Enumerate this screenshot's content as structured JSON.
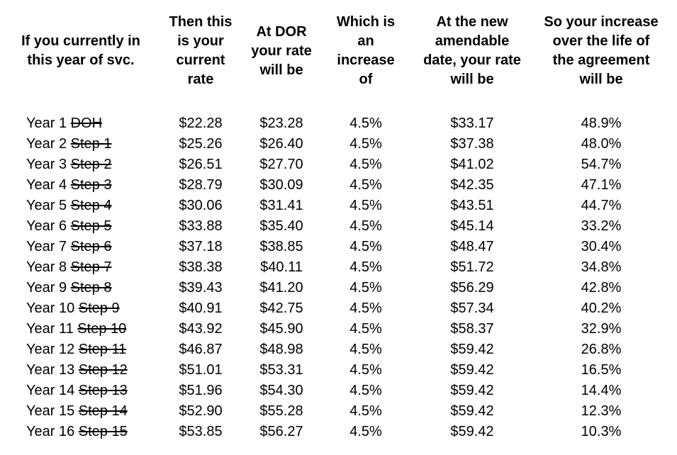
{
  "colors": {
    "background": "#ffffff",
    "text": "#000000"
  },
  "table": {
    "columns": [
      {
        "label": "If you currently in\nthis year of svc."
      },
      {
        "label": "Then this\nis your\ncurrent\nrate"
      },
      {
        "label": "At DOR\nyour rate\nwill be"
      },
      {
        "label": "Which is\nan\nincrease\nof"
      },
      {
        "label": "At the new\namendable\ndate, your rate\nwill be"
      },
      {
        "label": "So your increase\nover the life of\nthe agreement\nwill be"
      }
    ],
    "rows": [
      {
        "year": "Year 1",
        "step": "DOH",
        "current_rate": "$22.28",
        "dor_rate": "$23.28",
        "increase": "4.5%",
        "amendable_rate": "$33.17",
        "life_increase": "48.9%"
      },
      {
        "year": "Year 2",
        "step": "Step 1",
        "current_rate": "$25.26",
        "dor_rate": "$26.40",
        "increase": "4.5%",
        "amendable_rate": "$37.38",
        "life_increase": "48.0%"
      },
      {
        "year": "Year 3",
        "step": "Step 2",
        "current_rate": "$26.51",
        "dor_rate": "$27.70",
        "increase": "4.5%",
        "amendable_rate": "$41.02",
        "life_increase": "54.7%"
      },
      {
        "year": "Year 4",
        "step": "Step 3",
        "current_rate": "$28.79",
        "dor_rate": "$30.09",
        "increase": "4.5%",
        "amendable_rate": "$42.35",
        "life_increase": "47.1%"
      },
      {
        "year": "Year 5",
        "step": "Step 4",
        "current_rate": "$30.06",
        "dor_rate": "$31.41",
        "increase": "4.5%",
        "amendable_rate": "$43.51",
        "life_increase": "44.7%"
      },
      {
        "year": "Year 6",
        "step": "Step 5",
        "current_rate": "$33.88",
        "dor_rate": "$35.40",
        "increase": "4.5%",
        "amendable_rate": "$45.14",
        "life_increase": "33.2%"
      },
      {
        "year": "Year 7",
        "step": "Step 6",
        "current_rate": "$37.18",
        "dor_rate": "$38.85",
        "increase": "4.5%",
        "amendable_rate": "$48.47",
        "life_increase": "30.4%"
      },
      {
        "year": "Year 8",
        "step": "Step 7",
        "current_rate": "$38.38",
        "dor_rate": "$40.11",
        "increase": "4.5%",
        "amendable_rate": "$51.72",
        "life_increase": "34.8%"
      },
      {
        "year": "Year 9",
        "step": "Step 8",
        "current_rate": "$39.43",
        "dor_rate": "$41.20",
        "increase": "4.5%",
        "amendable_rate": "$56.29",
        "life_increase": "42.8%"
      },
      {
        "year": "Year 10",
        "step": "Step 9",
        "current_rate": "$40.91",
        "dor_rate": "$42.75",
        "increase": "4.5%",
        "amendable_rate": "$57.34",
        "life_increase": "40.2%"
      },
      {
        "year": "Year 11",
        "step": "Step 10",
        "current_rate": "$43.92",
        "dor_rate": "$45.90",
        "increase": "4.5%",
        "amendable_rate": "$58.37",
        "life_increase": "32.9%"
      },
      {
        "year": "Year 12",
        "step": "Step 11",
        "current_rate": "$46.87",
        "dor_rate": "$48.98",
        "increase": "4.5%",
        "amendable_rate": "$59.42",
        "life_increase": "26.8%"
      },
      {
        "year": "Year 13",
        "step": "Step 12",
        "current_rate": "$51.01",
        "dor_rate": "$53.31",
        "increase": "4.5%",
        "amendable_rate": "$59.42",
        "life_increase": "16.5%"
      },
      {
        "year": "Year 14",
        "step": "Step 13",
        "current_rate": "$51.96",
        "dor_rate": "$54.30",
        "increase": "4.5%",
        "amendable_rate": "$59.42",
        "life_increase": "14.4%"
      },
      {
        "year": "Year 15",
        "step": "Step 14",
        "current_rate": "$52.90",
        "dor_rate": "$55.28",
        "increase": "4.5%",
        "amendable_rate": "$59.42",
        "life_increase": "12.3%"
      },
      {
        "year": "Year 16",
        "step": "Step 15",
        "current_rate": "$53.85",
        "dor_rate": "$56.27",
        "increase": "4.5%",
        "amendable_rate": "$59.42",
        "life_increase": "10.3%"
      }
    ]
  }
}
